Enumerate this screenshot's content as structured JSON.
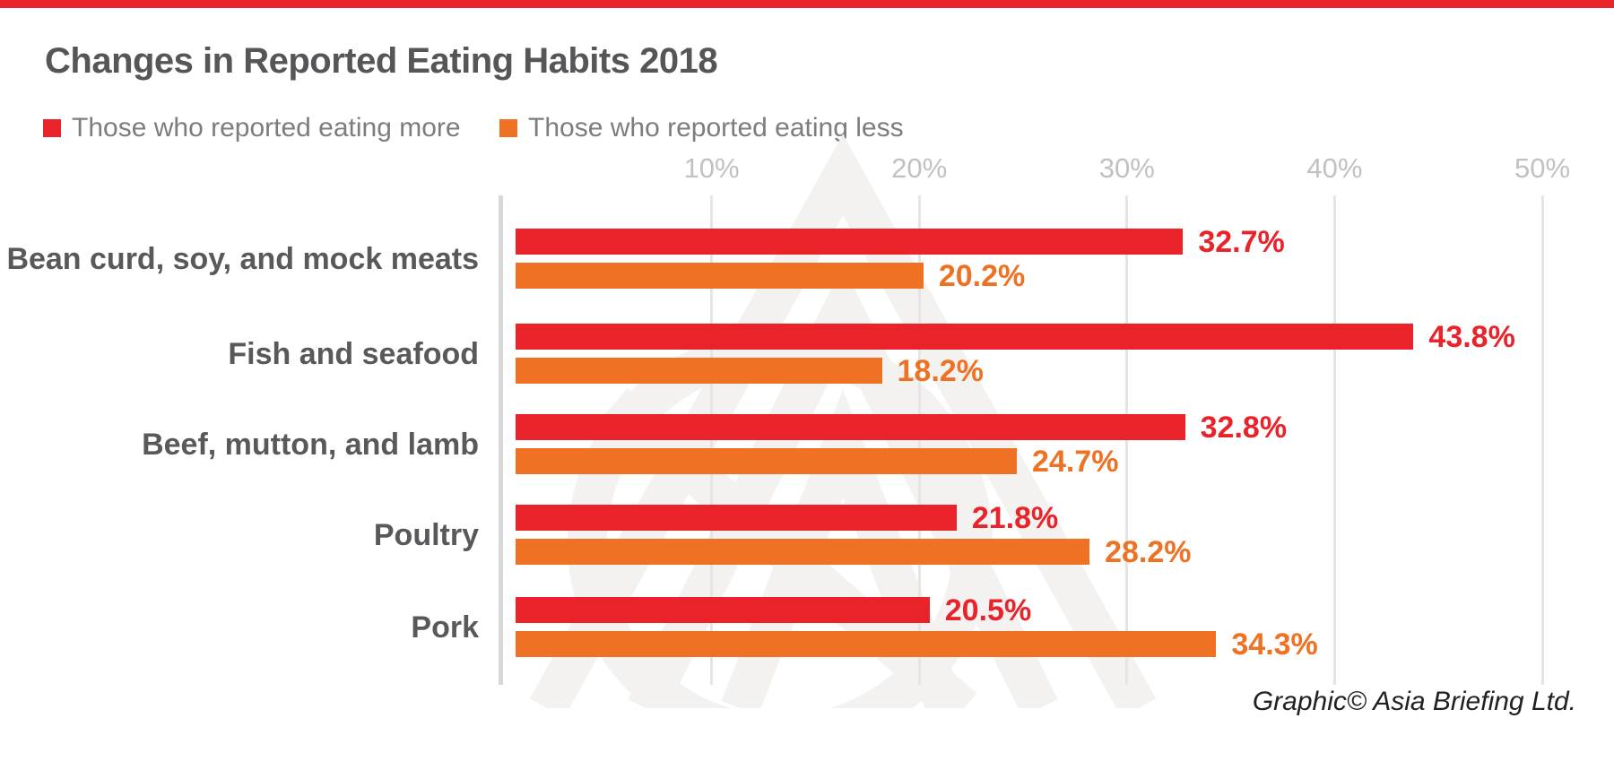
{
  "accent": {
    "top_stripe_color": "#ea222a"
  },
  "title": "Changes in Reported Eating Habits 2018",
  "legend": {
    "items": [
      {
        "label": "Those who reported eating more",
        "color": "#ea222a"
      },
      {
        "label": "Those who reported eating less",
        "color": "#ef7123"
      }
    ]
  },
  "footer": {
    "credit": "Graphic© Asia Briefing Ltd."
  },
  "chart_data": {
    "type": "bar",
    "orientation": "horizontal",
    "title": "Changes in Reported Eating Habits 2018",
    "categories": [
      "Bean curd, soy, and mock meats",
      "Fish and seafood",
      "Beef, mutton, and lamb",
      "Poultry",
      "Pork"
    ],
    "series": [
      {
        "name": "Those who reported eating more",
        "color": "#ea222a",
        "values": [
          32.7,
          43.8,
          32.8,
          21.8,
          20.5
        ]
      },
      {
        "name": "Those who reported eating less",
        "color": "#ef7123",
        "values": [
          20.2,
          18.2,
          24.7,
          28.2,
          34.3
        ]
      }
    ],
    "data_labels": [
      [
        "32.7%",
        "43.8%",
        "32.8%",
        "21.8%",
        "20.5%"
      ],
      [
        "20.2%",
        "18.2%",
        "24.7%",
        "28.2%",
        "34.3%"
      ]
    ],
    "value_suffix": "%",
    "xlim": [
      0,
      50
    ],
    "x_ticks": [
      {
        "value": 10,
        "label": "10%"
      },
      {
        "value": 20,
        "label": "20%"
      },
      {
        "value": 30,
        "label": "30%"
      },
      {
        "value": 40,
        "label": "40%"
      },
      {
        "value": 50,
        "label": "50%"
      }
    ],
    "grid": true,
    "legend_position": "top-left",
    "watermark": "asia-briefing-logo",
    "tick_label_color": "#c1c1c3",
    "gridline_color": "#e5e5e5",
    "category_label_color": "#58595b"
  }
}
